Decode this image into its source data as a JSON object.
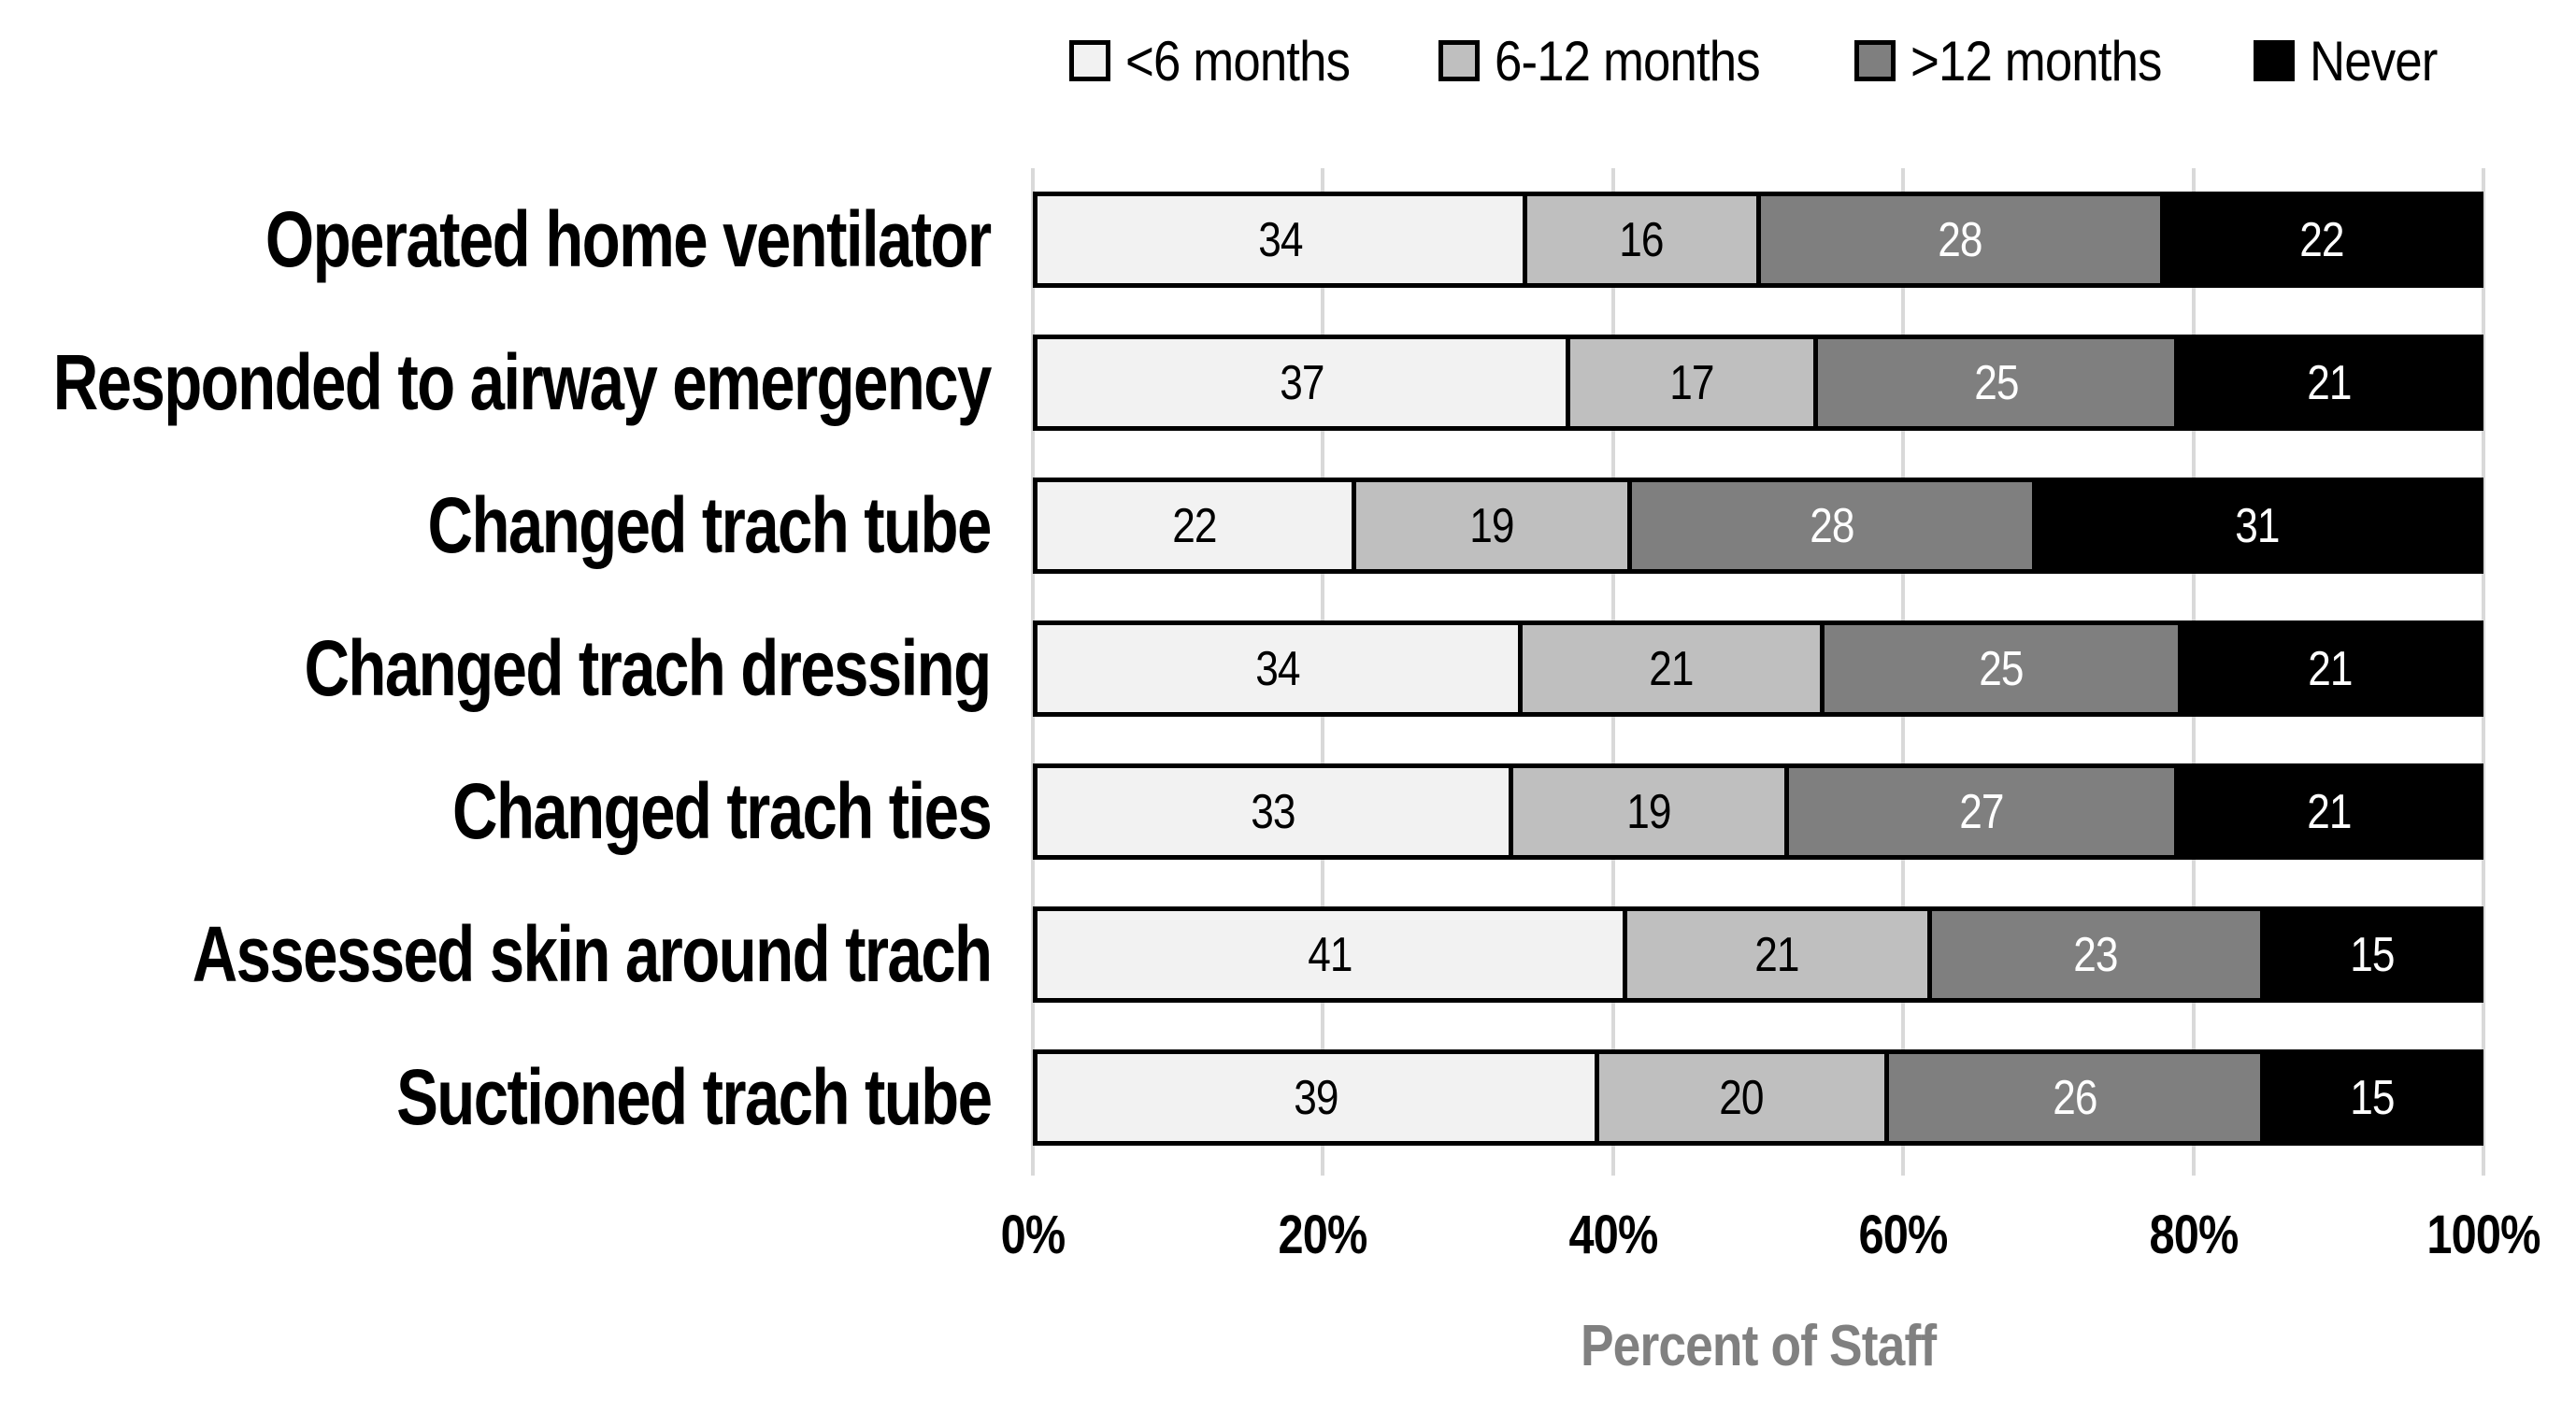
{
  "chart_data": {
    "type": "bar",
    "orientation": "horizontal-stacked",
    "title": "",
    "xlabel": "Percent of Staff",
    "xlim": [
      0,
      100
    ],
    "x_ticks": [
      "0%",
      "20%",
      "40%",
      "60%",
      "80%",
      "100%"
    ],
    "grid": true,
    "legend_position": "top",
    "categories": [
      "Operated home ventilator",
      "Responded to airway emergency",
      "Changed trach tube",
      "Changed trach dressing",
      "Changed trach ties",
      "Assessed skin around trach",
      "Suctioned trach tube"
    ],
    "series": [
      {
        "name": "<6 months",
        "color": "#f2f2f2",
        "text_color": "#000000",
        "values": [
          34,
          37,
          22,
          34,
          33,
          41,
          39
        ]
      },
      {
        "name": "6-12 months",
        "color": "#bfbfbf",
        "text_color": "#000000",
        "values": [
          16,
          17,
          19,
          21,
          19,
          21,
          20
        ]
      },
      {
        "name": ">12 months",
        "color": "#7f7f7f",
        "text_color": "#ffffff",
        "values": [
          28,
          25,
          28,
          25,
          27,
          23,
          26
        ]
      },
      {
        "name": "Never",
        "color": "#000000",
        "text_color": "#ffffff",
        "values": [
          22,
          21,
          31,
          21,
          21,
          15,
          15
        ]
      }
    ],
    "colors": {
      "gridline": "#d9d9d9",
      "segment_border": "#000000",
      "axis_title": "#808080"
    }
  }
}
